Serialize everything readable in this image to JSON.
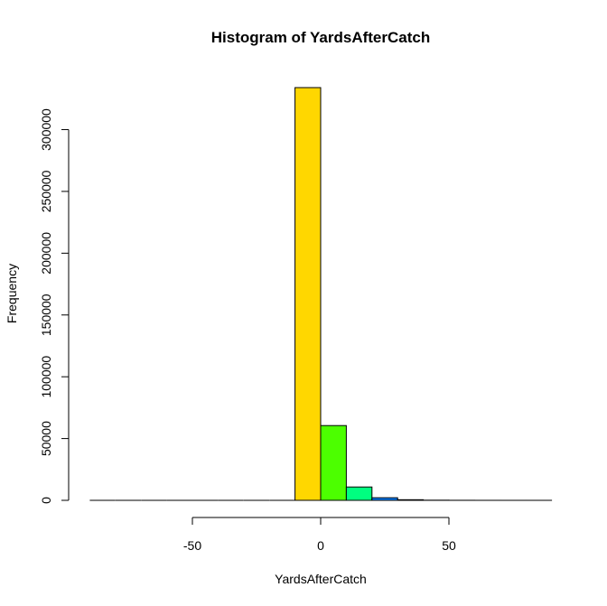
{
  "chart_data": {
    "type": "bar",
    "title": "Histogram of YardsAfterCatch",
    "xlabel": "YardsAfterCatch",
    "ylabel": "Frequency",
    "bins": [
      {
        "x0": -90,
        "x1": -80,
        "count": 0
      },
      {
        "x0": -80,
        "x1": -70,
        "count": 0
      },
      {
        "x0": -70,
        "x1": -60,
        "count": 0
      },
      {
        "x0": -60,
        "x1": -50,
        "count": 0
      },
      {
        "x0": -50,
        "x1": -40,
        "count": 0
      },
      {
        "x0": -40,
        "x1": -30,
        "count": 0
      },
      {
        "x0": -30,
        "x1": -20,
        "count": 0
      },
      {
        "x0": -20,
        "x1": -10,
        "count": 0
      },
      {
        "x0": -10,
        "x1": 0,
        "count": 334000,
        "color": "#FFD700"
      },
      {
        "x0": 0,
        "x1": 10,
        "count": 60500,
        "color": "#4CFF00"
      },
      {
        "x0": 10,
        "x1": 20,
        "count": 10800,
        "color": "#00FF80"
      },
      {
        "x0": 20,
        "x1": 30,
        "count": 2100,
        "color": "#0080FF"
      },
      {
        "x0": 30,
        "x1": 40,
        "count": 500,
        "color": "#4000FF"
      },
      {
        "x0": 40,
        "x1": 50,
        "count": 120,
        "color": "#C000FF"
      },
      {
        "x0": 50,
        "x1": 60,
        "count": 40,
        "color": "#FF00C0"
      },
      {
        "x0": 60,
        "x1": 70,
        "count": 10,
        "color": "#FF0040"
      },
      {
        "x0": 70,
        "x1": 80,
        "count": 5,
        "color": "#FF4000"
      },
      {
        "x0": 80,
        "x1": 90,
        "count": 2,
        "color": "#FF8000"
      }
    ],
    "xticks": [
      -50,
      0,
      50
    ],
    "yticks": [
      0,
      50000,
      100000,
      150000,
      200000,
      250000,
      300000
    ],
    "xlim": [
      -90,
      90
    ],
    "ylim": [
      0,
      334000
    ],
    "grid": false,
    "legend": "none"
  }
}
